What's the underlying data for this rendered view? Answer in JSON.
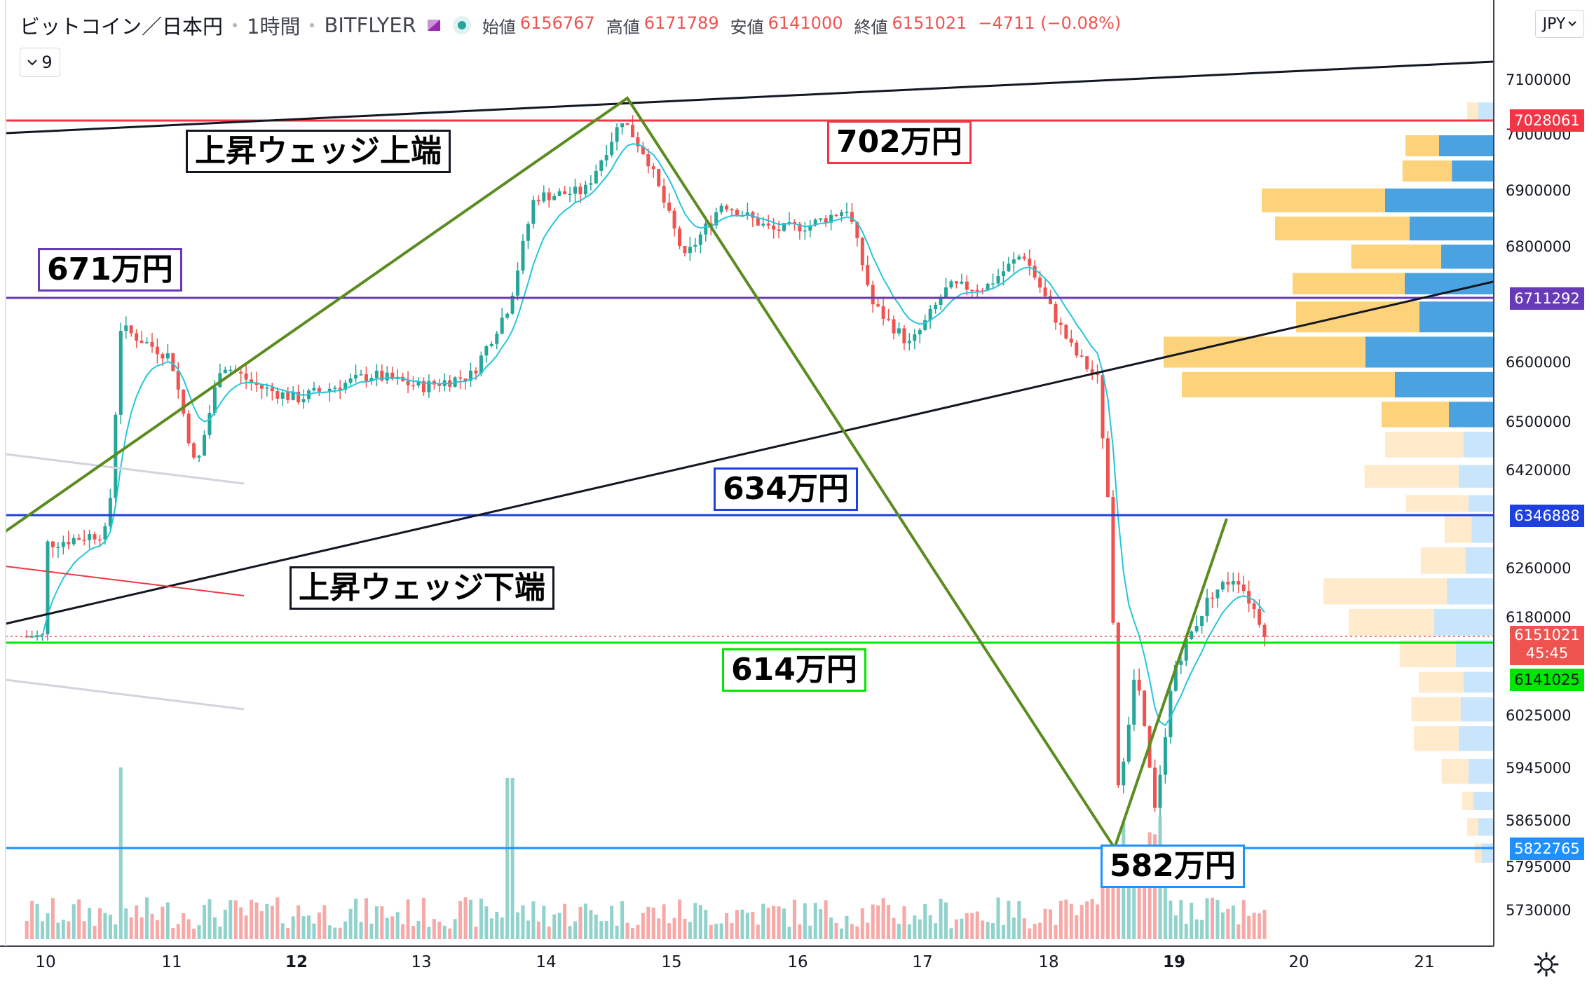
{
  "header": {
    "symbol": "ビットコイン／日本円",
    "interval": "1時間",
    "exchange": "BITFLYER",
    "ohlc": {
      "open_label": "始値",
      "open": "6156767",
      "high_label": "高値",
      "high": "6171789",
      "low_label": "安値",
      "low": "6141000",
      "close_label": "終値",
      "close": "6151021",
      "change": "−4711 (−0.08%)"
    },
    "collapse_count": "9",
    "currency": "JPY",
    "icons": [
      "chevron-down-icon",
      "settings-gear-icon"
    ]
  },
  "annotations": {
    "wedge_upper": "上昇ウェッジ上端",
    "wedge_lower": "上昇ウェッジ下端",
    "level_702": "702万円",
    "level_671": "671万円",
    "level_634": "634万円",
    "level_614": "614万円",
    "level_582": "582万円"
  },
  "price_tags": {
    "red": "7028061",
    "purple": "6711292",
    "blue": "6346888",
    "last": "6151021",
    "countdown": "45:45",
    "green": "6141025",
    "cyan": "5822765"
  },
  "colors": {
    "up": "#26a69a",
    "down": "#ef5350",
    "red_line": "#f23645",
    "purple_line": "#673ab7",
    "blue_line": "#1e40e0",
    "green_line": "#00e600",
    "cyan_line": "#1e90ff",
    "trend_green": "#5b8c1f",
    "wedge_black": "#131722",
    "ma": "#26c6da"
  },
  "chart_data": {
    "type": "candlestick",
    "x_tick_labels": [
      "10",
      "11",
      "12",
      "13",
      "14",
      "15",
      "16",
      "17",
      "18",
      "19",
      "20",
      "21"
    ],
    "y_tick_labels": [
      "7100000",
      "7000000",
      "6900000",
      "6800000",
      "6600000",
      "6500000",
      "6420000",
      "6260000",
      "6180000",
      "6025000",
      "5945000",
      "5865000",
      "5795000",
      "5730000"
    ],
    "horizontal_levels": [
      7028061,
      6711292,
      6346888,
      6141025,
      5822765
    ],
    "last_price": 6151021,
    "key_points": [
      {
        "x": "10",
        "y": 6346888
      },
      {
        "x": "14.6",
        "y": 7060000
      },
      {
        "x": "18.5",
        "y": 5800000
      },
      {
        "x": "19.4",
        "y": 6346888
      }
    ],
    "volume_profile": "visible on right side (blue/yellow bars)"
  }
}
